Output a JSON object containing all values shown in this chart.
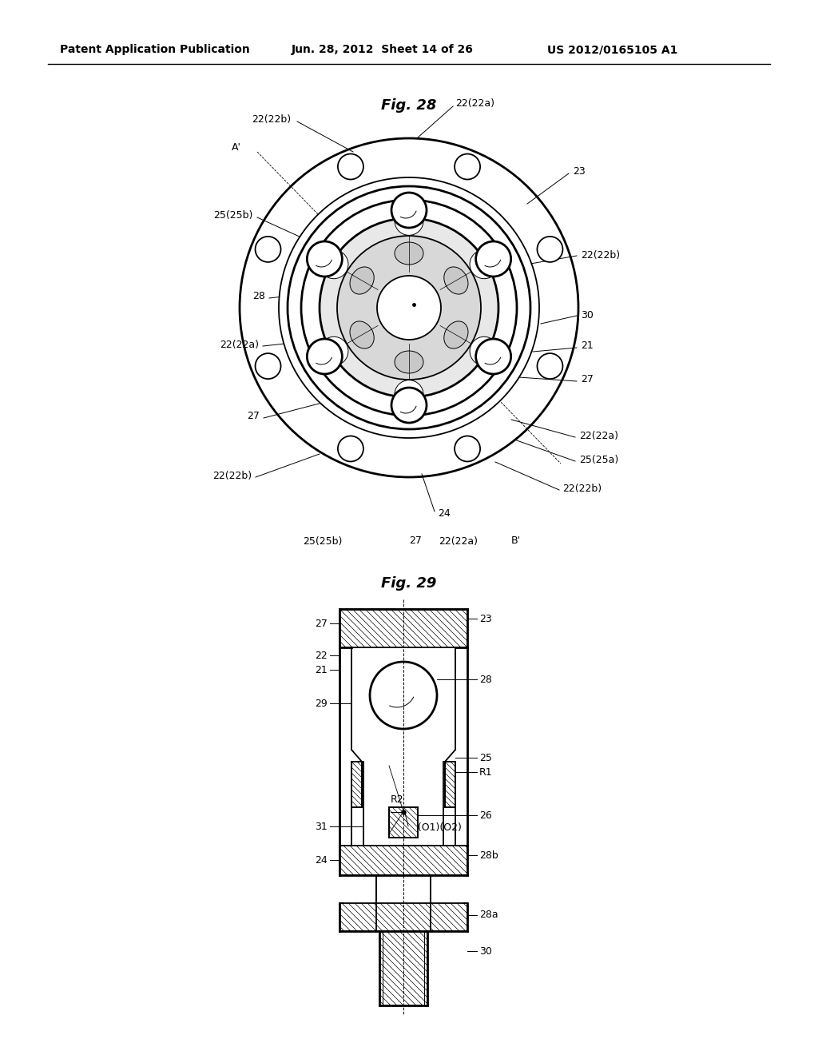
{
  "bg_color": "#ffffff",
  "header_text": "Patent Application Publication",
  "header_date": "Jun. 28, 2012  Sheet 14 of 26",
  "header_patent": "US 2012/0165105 A1",
  "fig28_title": "Fig. 28",
  "fig29_title": "Fig. 29"
}
